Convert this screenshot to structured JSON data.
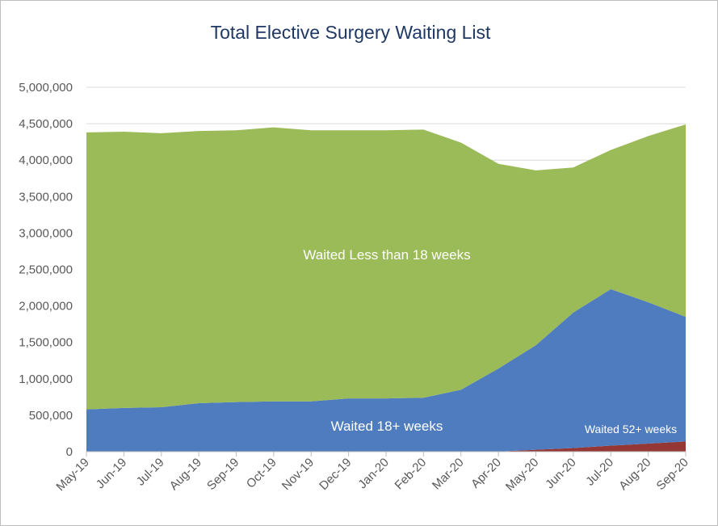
{
  "chart_data": {
    "type": "stacked_area",
    "title": "Total Elective Surgery Waiting List",
    "categories": [
      "May-19",
      "Jun-19",
      "Jul-19",
      "Aug-19",
      "Sep-19",
      "Oct-19",
      "Nov-19",
      "Dec-19",
      "Jan-20",
      "Feb-20",
      "Mar-20",
      "Apr-20",
      "May-20",
      "Jun-20",
      "Jul-20",
      "Aug-20",
      "Sep-20"
    ],
    "series": [
      {
        "name": "Waited 52+ weeks",
        "color": "#953735",
        "values": [
          1000,
          1000,
          1000,
          1000,
          1000,
          1000,
          1000,
          1000,
          1000,
          1000,
          1000,
          2000,
          26000,
          50000,
          83000,
          111000,
          140000
        ]
      },
      {
        "name": "Waited 18+ weeks",
        "color": "#4f7cbf",
        "values": [
          579000,
          599000,
          609000,
          664000,
          679000,
          689000,
          689000,
          729000,
          729000,
          739000,
          849000,
          1138000,
          1434000,
          1860000,
          2147000,
          1939000,
          1710000
        ]
      },
      {
        "name": "Waited Less than 18 weeks",
        "color": "#9bbb59",
        "values": [
          3800000,
          3790000,
          3760000,
          3735000,
          3730000,
          3760000,
          3720000,
          3680000,
          3680000,
          3680000,
          3390000,
          2810000,
          2400000,
          1990000,
          1910000,
          2280000,
          2640000
        ]
      }
    ],
    "ylim": [
      0,
      5000000
    ],
    "yticks": [
      0,
      {
        "value": 500000,
        "label": "500,000"
      },
      {
        "value": 1000000,
        "label": "1,000,000"
      },
      {
        "value": 1500000,
        "label": "1,500,000"
      },
      {
        "value": 2000000,
        "label": "2,000,000"
      },
      {
        "value": 2500000,
        "label": "2,500,000"
      },
      {
        "value": 3000000,
        "label": "3,000,000"
      },
      {
        "value": 3500000,
        "label": "3,500,000"
      },
      {
        "value": 4000000,
        "label": "4,000,000"
      },
      {
        "value": 4500000,
        "label": "4,500,000"
      },
      {
        "value": 5000000,
        "label": "5,000,000"
      }
    ],
    "grid": true
  }
}
